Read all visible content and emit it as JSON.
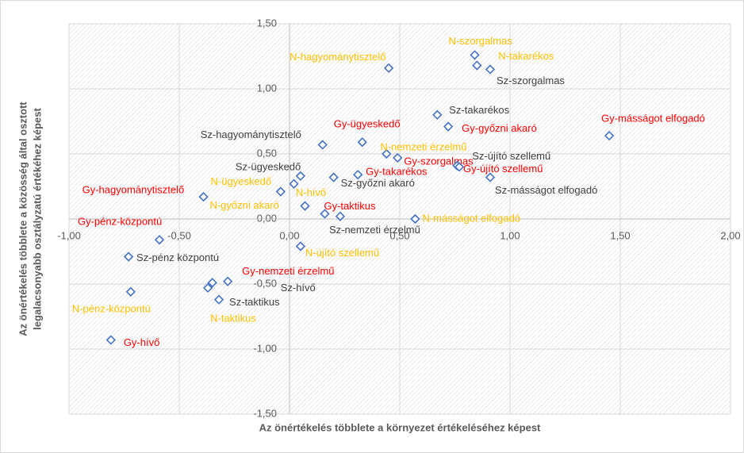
{
  "chart_data": {
    "type": "scatter",
    "xlabel": "Az önértékelés többlete a környezet értékeléséhez képest",
    "ylabel": [
      "Az önértékelés többlete a közösség által osztott",
      "legalacsonyabb osztályzatú értékéhez képest"
    ],
    "xlim": [
      -1,
      2
    ],
    "ylim": [
      -1.5,
      1.5
    ],
    "xticks": [
      {
        "value": -1,
        "label": "-1,00"
      },
      {
        "value": -0.5,
        "label": "-0,50"
      },
      {
        "value": 0,
        "label": "0,00"
      },
      {
        "value": 0.5,
        "label": "0,50"
      },
      {
        "value": 1,
        "label": "1,00"
      },
      {
        "value": 1.5,
        "label": "1,50"
      },
      {
        "value": 2,
        "label": "2,00"
      }
    ],
    "yticks": [
      {
        "value": -1.5,
        "label": "-1,50"
      },
      {
        "value": -1,
        "label": "-1,00"
      },
      {
        "value": -0.5,
        "label": "-0,50"
      },
      {
        "value": 0,
        "label": "0,00"
      },
      {
        "value": 0.5,
        "label": "0,50"
      },
      {
        "value": 1,
        "label": "1,00"
      },
      {
        "value": 1.5,
        "label": "1,50"
      }
    ],
    "grid": true,
    "marker_color": "#4472c4",
    "points": [
      {
        "label": "N-szorgalmas",
        "x": 0.84,
        "y": 1.26,
        "color": "#ffc000"
      },
      {
        "label": "N-takarékos",
        "x": 0.85,
        "y": 1.18,
        "color": "#ffc000"
      },
      {
        "label": "Sz-szorgalmas",
        "x": 0.91,
        "y": 1.15,
        "color": "#404040"
      },
      {
        "label": "N-hagyománytisztelő",
        "x": 0.45,
        "y": 1.16,
        "color": "#ffc000"
      },
      {
        "label": "Sz-takarékos",
        "x": 0.67,
        "y": 0.8,
        "color": "#404040"
      },
      {
        "label": "Gy-győzni akaró",
        "x": 0.72,
        "y": 0.71,
        "color": "#ff0000"
      },
      {
        "label": "Gy-másságot elfogadó",
        "x": 1.45,
        "y": 0.64,
        "color": "#ff0000"
      },
      {
        "label": "Gy-ügyeskedő",
        "x": 0.33,
        "y": 0.59,
        "color": "#ff0000"
      },
      {
        "label": "Sz-hagyománytisztelő",
        "x": 0.15,
        "y": 0.57,
        "color": "#404040"
      },
      {
        "label": "N-nemzeti érzelmű",
        "x": 0.44,
        "y": 0.5,
        "color": "#ffc000"
      },
      {
        "label": "Gy-szorgalmas",
        "x": 0.49,
        "y": 0.47,
        "color": "#ff0000"
      },
      {
        "label": "Sz-újító szellemű",
        "x": 0.76,
        "y": 0.41,
        "color": "#404040"
      },
      {
        "label": "Gy-újító szellemű",
        "x": 0.77,
        "y": 0.4,
        "color": "#ff0000"
      },
      {
        "label": "Sz-másságot elfogadó",
        "x": 0.91,
        "y": 0.32,
        "color": "#404040"
      },
      {
        "label": "Gy-takarékos",
        "x": 0.31,
        "y": 0.34,
        "color": "#ff0000"
      },
      {
        "label": "Sz-győzni akaró",
        "x": 0.2,
        "y": 0.32,
        "color": "#404040"
      },
      {
        "label": "Sz-ügyeskedő",
        "x": 0.05,
        "y": 0.33,
        "color": "#404040"
      },
      {
        "label": "N-ügyeskedő",
        "x": 0.02,
        "y": 0.27,
        "color": "#ffc000"
      },
      {
        "label": "N-hívő",
        "x": -0.04,
        "y": 0.21,
        "color": "#ffc000"
      },
      {
        "label": "Gy-hagyománytisztelő",
        "x": -0.39,
        "y": 0.17,
        "color": "#ff0000"
      },
      {
        "label": "N-győzni akaró",
        "x": 0.07,
        "y": 0.1,
        "color": "#ffc000"
      },
      {
        "label": "Gy-taktikus",
        "x": 0.16,
        "y": 0.04,
        "color": "#ff0000"
      },
      {
        "label": "Sz-nemzeti érzelmű",
        "x": 0.23,
        "y": 0.02,
        "color": "#404040"
      },
      {
        "label": "N-másságot elfogadó",
        "x": 0.57,
        "y": 0.0,
        "color": "#ffc000"
      },
      {
        "label": "Gy-pénz-központú",
        "x": -0.59,
        "y": -0.16,
        "color": "#ff0000"
      },
      {
        "label": "Sz-pénz központú",
        "x": -0.73,
        "y": -0.29,
        "color": "#404040"
      },
      {
        "label": "N-újító szellemű",
        "x": 0.05,
        "y": -0.21,
        "color": "#ffc000"
      },
      {
        "label": "Gy-nemzeti érzelmű",
        "x": -0.28,
        "y": -0.48,
        "color": "#ff0000"
      },
      {
        "label": "Sz-hívő",
        "x": -0.35,
        "y": -0.49,
        "color": "#404040"
      },
      {
        "label": "N-taktikus",
        "x": -0.37,
        "y": -0.53,
        "color": "#ffc000"
      },
      {
        "label": "Sz-taktikus",
        "x": -0.32,
        "y": -0.62,
        "color": "#404040"
      },
      {
        "label": "N-pénz-központú",
        "x": -0.72,
        "y": -0.56,
        "color": "#ffc000"
      },
      {
        "label": "Gy-hívő",
        "x": -0.81,
        "y": -0.93,
        "color": "#ff0000"
      }
    ]
  }
}
